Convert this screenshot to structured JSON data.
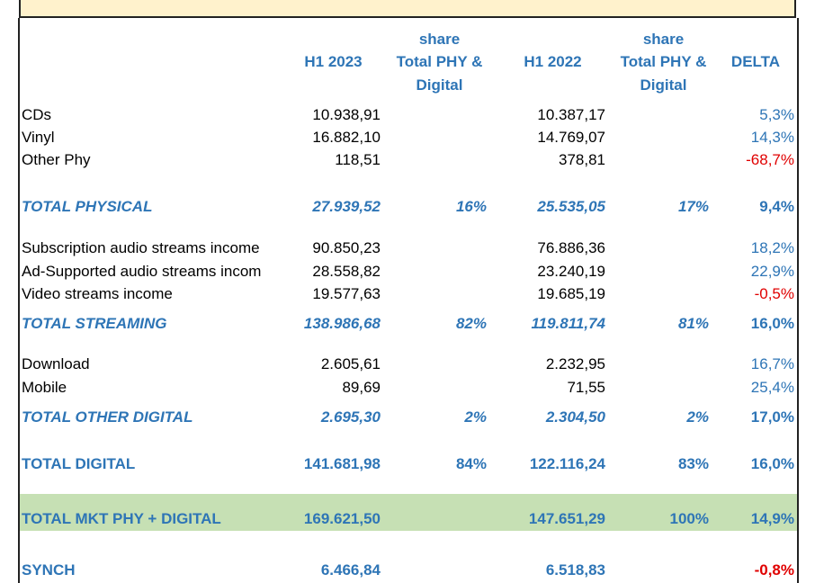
{
  "headers": {
    "h1_2023": "H1 2023",
    "share1_line1": "share",
    "share1_line2": "Total  PHY &",
    "share1_line3": "Digital",
    "h1_2022": "H1 2022",
    "share2_line1": "share",
    "share2_line2": "Total  PHY &",
    "share2_line3": "Digital",
    "delta": "DELTA"
  },
  "rows": {
    "cds": {
      "label": "CDs",
      "h1_2023": "10.938,91",
      "h1_2022": "10.387,17",
      "delta": "5,3%"
    },
    "vinyl": {
      "label": "Vinyl",
      "h1_2023": "16.882,10",
      "h1_2022": "14.769,07",
      "delta": "14,3%"
    },
    "other_phy": {
      "label": "Other Phy",
      "h1_2023": "118,51",
      "h1_2022": "378,81",
      "delta": "-68,7%"
    },
    "total_physical": {
      "label": "TOTAL PHYSICAL",
      "h1_2023": "27.939,52",
      "share_2023": "16%",
      "h1_2022": "25.535,05",
      "share_2022": "17%",
      "delta": "9,4%"
    },
    "subscription": {
      "label": "Subscription audio streams income",
      "h1_2023": "90.850,23",
      "h1_2022": "76.886,36",
      "delta": "18,2%"
    },
    "ad_supported": {
      "label": "Ad-Supported audio streams incom",
      "h1_2023": "28.558,82",
      "h1_2022": "23.240,19",
      "delta": "22,9%"
    },
    "video": {
      "label": "Video streams  income",
      "h1_2023": "19.577,63",
      "h1_2022": "19.685,19",
      "delta": "-0,5%"
    },
    "total_streaming": {
      "label": "TOTAL STREAMING",
      "h1_2023": "138.986,68",
      "share_2023": "82%",
      "h1_2022": "119.811,74",
      "share_2022": "81%",
      "delta": "16,0%"
    },
    "download": {
      "label": "Download",
      "h1_2023": "2.605,61",
      "h1_2022": "2.232,95",
      "delta": "16,7%"
    },
    "mobile": {
      "label": "Mobile",
      "h1_2023": "89,69",
      "h1_2022": "71,55",
      "delta": "25,4%"
    },
    "total_other_digital": {
      "label": "TOTAL OTHER DIGITAL",
      "h1_2023": "2.695,30",
      "share_2023": "2%",
      "h1_2022": "2.304,50",
      "share_2022": "2%",
      "delta": "17,0%"
    },
    "total_digital": {
      "label": "TOTAL DIGITAL",
      "h1_2023": "141.681,98",
      "share_2023": "84%",
      "h1_2022": "122.116,24",
      "share_2022": "83%",
      "delta": "16,0%"
    },
    "total_mkt": {
      "label": "TOTAL MKT PHY + DIGITAL",
      "h1_2023": "169.621,50",
      "h1_2022": "147.651,29",
      "share_2022": "100%",
      "delta": "14,9%"
    },
    "synch": {
      "label": "SYNCH",
      "h1_2023": "6.466,84",
      "h1_2022": "6.518,83",
      "delta": "-0,8%"
    }
  },
  "colors": {
    "header_blue": "#2e75b6",
    "negative_red": "#e00000",
    "band_yellow": "#fff2cc",
    "band_green": "#c6e0b4"
  }
}
